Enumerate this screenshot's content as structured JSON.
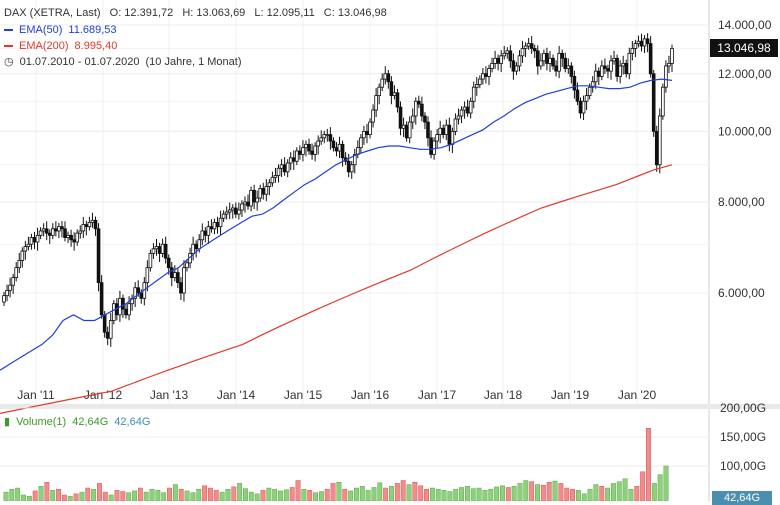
{
  "header": {
    "symbol": "DAX (XETRA, Last)",
    "ohlc": {
      "o": "O: 12.391,72",
      "h": "H: 13.063,69",
      "l": "L: 12.095,11",
      "c": "C: 13.046,98"
    },
    "ema50": {
      "label": "EMA(50)",
      "value": "11.689,53",
      "color": "#1f3fd8"
    },
    "ema200": {
      "label": "EMA(200)",
      "value": "8.995,40",
      "color": "#e0392b"
    },
    "period": "01.07.2010 - 01.07.2020",
    "period_detail": "(10 Jahre, 1 Monat)"
  },
  "last_price": "13.046,98",
  "volume_header": {
    "label": "Volume(1)",
    "value1": "42,64G",
    "value2": "42,64G",
    "color1": "#3a9a2a",
    "color2": "#3a8fb0"
  },
  "volume_last": "42,64G",
  "chart_data": [
    {
      "type": "candlestick",
      "title": "DAX (XETRA, Last)",
      "y_ticks": [
        "14.000,00",
        "12.000,00",
        "10.000,00",
        "8.000,00",
        "6.000,00"
      ],
      "y_tick_values": [
        14000,
        12000,
        10000,
        8000,
        6000
      ],
      "x_ticks": [
        "Jan '11",
        "Jan '12",
        "Jan '13",
        "Jan '14",
        "Jan '15",
        "Jan '16",
        "Jan '17",
        "Jan '18",
        "Jan '19",
        "Jan '20"
      ],
      "ylim": [
        4500,
        14500
      ],
      "scale": "log",
      "close_weekly_approx": [
        5950,
        6050,
        6150,
        6300,
        6500,
        6650,
        6850,
        6950,
        7000,
        7150,
        7050,
        7200,
        7300,
        7350,
        7250,
        7200,
        7350,
        7300,
        7400,
        7350,
        7150,
        7200,
        7100,
        7050,
        7250,
        7300,
        7450,
        7400,
        7500,
        7550,
        7350,
        6200,
        5600,
        5300,
        5200,
        5500,
        5800,
        5600,
        5900,
        5700,
        5600,
        5800,
        5900,
        6100,
        6000,
        5900,
        6200,
        6500,
        6800,
        6900,
        6950,
        6800,
        7000,
        6700,
        6500,
        6300,
        6400,
        6200,
        6000,
        6500,
        6600,
        6800,
        7000,
        6900,
        7100,
        7300,
        7200,
        7400,
        7350,
        7500,
        7400,
        7600,
        7700,
        7750,
        7800,
        7850,
        7700,
        7800,
        7950,
        8000,
        7900,
        8300,
        8000,
        8100,
        8350,
        8200,
        8400,
        8500,
        8650,
        8700,
        8900,
        9000,
        8800,
        9050,
        9200,
        9100,
        9400,
        9300,
        9500,
        9600,
        9400,
        9300,
        9550,
        9700,
        9800,
        9900,
        9900,
        9700,
        9500,
        9400,
        9600,
        9200,
        9100,
        8800,
        9000,
        9300,
        9500,
        9800,
        10000,
        9900,
        10300,
        10700,
        11200,
        11500,
        11800,
        12000,
        11700,
        11200,
        11300,
        10800,
        10100,
        10200,
        9800,
        10300,
        10500,
        11000,
        10900,
        10500,
        10300,
        9800,
        9300,
        9700,
        9900,
        10100,
        9900,
        10200,
        9600,
        10000,
        10400,
        10500,
        10700,
        10800,
        10600,
        11000,
        11500,
        11600,
        11800,
        12000,
        11900,
        12200,
        12400,
        12600,
        12400,
        12700,
        12800,
        12900,
        12500,
        12100,
        12300,
        12700,
        13000,
        13100,
        13200,
        13000,
        12900,
        12300,
        12500,
        12800,
        12400,
        12600,
        12300,
        12100,
        12800,
        12600,
        12200,
        12300,
        11900,
        11400,
        11000,
        10600,
        11000,
        11200,
        11500,
        11700,
        12100,
        11900,
        12300,
        12200,
        12100,
        12500,
        12600,
        11900,
        12300,
        12400,
        12000,
        12800,
        13000,
        13200,
        13300,
        13100,
        13400,
        13200,
        12000,
        10000,
        9000,
        10500,
        11500,
        12300,
        12400,
        13000
      ],
      "ema50_approx": [
        4700,
        4800,
        4900,
        5000,
        5100,
        5250,
        5500,
        5600,
        5500,
        5500,
        5600,
        5700,
        5800,
        5950,
        6100,
        6250,
        6400,
        6500,
        6700,
        6900,
        7050,
        7200,
        7350,
        7500,
        7650,
        7700,
        7850,
        8050,
        8250,
        8450,
        8600,
        8800,
        9000,
        9150,
        9300,
        9400,
        9500,
        9550,
        9550,
        9500,
        9450,
        9450,
        9500,
        9600,
        9750,
        9900,
        10050,
        10300,
        10500,
        10750,
        10950,
        11100,
        11250,
        11350,
        11450,
        11550,
        11550,
        11500,
        11450,
        11450,
        11500,
        11650,
        11750,
        11800,
        11750
      ],
      "ema200_approx": [
        4100,
        4150,
        4200,
        4250,
        4300,
        4350,
        4400,
        4500,
        4600,
        4700,
        4800,
        4900,
        5000,
        5100,
        5250,
        5400,
        5550,
        5700,
        5850,
        6000,
        6150,
        6300,
        6450,
        6650,
        6850,
        7050,
        7250,
        7450,
        7650,
        7850,
        8000,
        8150,
        8300,
        8450,
        8650,
        8850,
        9000
      ],
      "volume_bars_approx_G": [
        55,
        60,
        62,
        50,
        48,
        57,
        65,
        72,
        58,
        60,
        50,
        48,
        52,
        55,
        62,
        60,
        70,
        55,
        50,
        58,
        56,
        54,
        57,
        62,
        55,
        60,
        58,
        54,
        62,
        68,
        60,
        57,
        54,
        60,
        66,
        62,
        58,
        55,
        60,
        64,
        70,
        61,
        55,
        52,
        58,
        62,
        60,
        57,
        59,
        63,
        75,
        60,
        58,
        54,
        56,
        60,
        70,
        72,
        60,
        57,
        62,
        65,
        58,
        63,
        71,
        62,
        65,
        70,
        75,
        68,
        72,
        66,
        60,
        62,
        60,
        58,
        56,
        60,
        63,
        65,
        61,
        62,
        58,
        60,
        64,
        66,
        63,
        65,
        70,
        75,
        73,
        68,
        67,
        72,
        74,
        70,
        62,
        60,
        58,
        52,
        60,
        68,
        65,
        62,
        70,
        73,
        78,
        60,
        65,
        90,
        165,
        70,
        85,
        100
      ]
    },
    {
      "type": "bar",
      "title": "Volume(1)",
      "y_ticks": [
        "200,00G",
        "150,00G",
        "100,00G"
      ],
      "ylim": [
        0,
        200
      ]
    }
  ]
}
